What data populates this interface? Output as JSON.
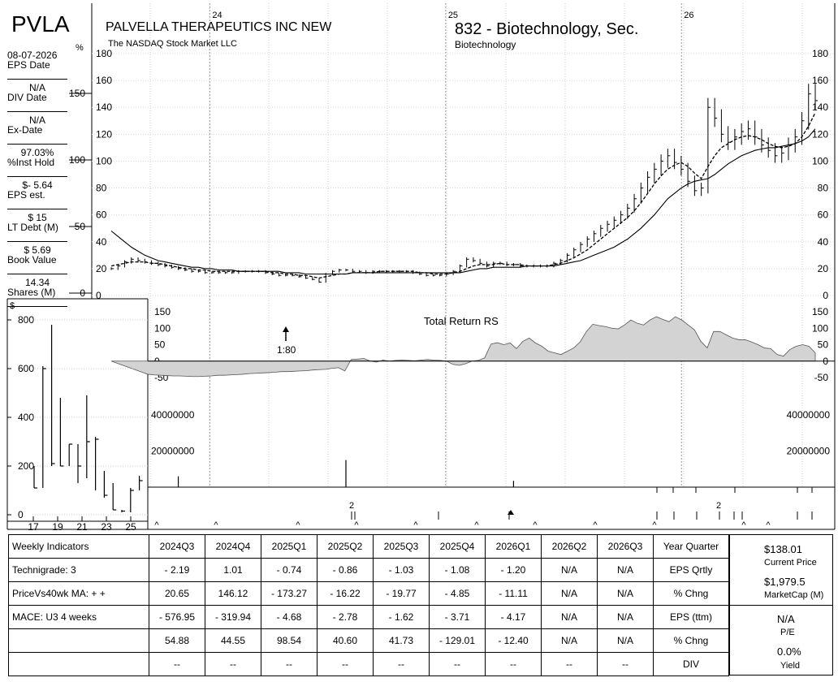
{
  "ticker": "PVLA",
  "company": "PALVELLA THERAPEUTICS INC NEW",
  "exchange": "The NASDAQ Stock Market LLC",
  "industry_group": "832 - Biotechnology, Sec.",
  "industry": "Biotechnology",
  "percent_symbol": "%",
  "dollar_symbol": "$",
  "sidebar": [
    {
      "value": "08-07-2026",
      "label": "EPS Date"
    },
    {
      "value": "N/A",
      "label": "DIV Date"
    },
    {
      "value": "N/A",
      "label": "Ex-Date"
    },
    {
      "value": "97.03%",
      "label": "%Inst Hold"
    },
    {
      "value": "$- 5.64",
      "label": "EPS est."
    },
    {
      "value": "$ 15",
      "label": "LT Debt (M)"
    },
    {
      "value": "$ 5.69",
      "label": "Book Value"
    },
    {
      "value": "14.34",
      "label": "Shares (M)"
    }
  ],
  "chart_data": {
    "type": "line",
    "price": {
      "ylim": [
        0,
        180
      ],
      "ticks": [
        0,
        20,
        40,
        60,
        80,
        100,
        120,
        140,
        160,
        180
      ],
      "pct_ticks": [
        {
          "value": 0,
          "label": "0"
        },
        {
          "value": 50,
          "label": "50"
        },
        {
          "value": 100,
          "label": "100"
        },
        {
          "value": 150,
          "label": "150"
        }
      ],
      "year_labels": [
        "24",
        "25",
        "26"
      ],
      "weekly_close": [
        20,
        22,
        25,
        27,
        26,
        25,
        24,
        23,
        22,
        21,
        20,
        19,
        18,
        18,
        17,
        17,
        17,
        17,
        17,
        18,
        18,
        18,
        18,
        17,
        16,
        15,
        15,
        15,
        14,
        13,
        12,
        10,
        16,
        18,
        19,
        19,
        18,
        18,
        17,
        18,
        18,
        18,
        18,
        18,
        18,
        17,
        16,
        15,
        15,
        15,
        16,
        18,
        22,
        27,
        26,
        24,
        22,
        24,
        24,
        23,
        23,
        22,
        22,
        22,
        22,
        22,
        24,
        26,
        30,
        34,
        38,
        42,
        46,
        50,
        53,
        56,
        60,
        65,
        72,
        80,
        88,
        94,
        100,
        104,
        99,
        94,
        85,
        78,
        80,
        140,
        132,
        120,
        114,
        118,
        122,
        124,
        118,
        112,
        108,
        104,
        106,
        112,
        118,
        130,
        150,
        145
      ],
      "ma_short": [
        22,
        23,
        24,
        25,
        25,
        25,
        24,
        24,
        23,
        22,
        21,
        20,
        20,
        19,
        19,
        18,
        18,
        18,
        18,
        18,
        18,
        18,
        18,
        18,
        17,
        17,
        16,
        16,
        15,
        15,
        14,
        13,
        14,
        15,
        16,
        16,
        17,
        17,
        17,
        17,
        18,
        18,
        18,
        18,
        18,
        18,
        17,
        17,
        16,
        16,
        16,
        17,
        18,
        20,
        22,
        23,
        23,
        23,
        24,
        23,
        23,
        23,
        22,
        22,
        22,
        22,
        23,
        24,
        26,
        28,
        31,
        34,
        38,
        42,
        46,
        50,
        54,
        58,
        63,
        69,
        76,
        83,
        89,
        94,
        97,
        99,
        96,
        91,
        87,
        96,
        104,
        110,
        113,
        116,
        118,
        119,
        118,
        116,
        113,
        111,
        110,
        111,
        113,
        118,
        126,
        136
      ],
      "ma_long": [
        48,
        44,
        40,
        36,
        33,
        30,
        28,
        26,
        25,
        24,
        23,
        22,
        21,
        21,
        20,
        20,
        19,
        19,
        19,
        18,
        18,
        18,
        18,
        18,
        18,
        18,
        17,
        17,
        17,
        16,
        16,
        16,
        16,
        16,
        16,
        16,
        17,
        17,
        17,
        17,
        17,
        17,
        17,
        17,
        17,
        17,
        17,
        17,
        17,
        17,
        17,
        17,
        17,
        18,
        19,
        20,
        20,
        21,
        21,
        21,
        21,
        21,
        22,
        22,
        22,
        22,
        22,
        23,
        24,
        25,
        26,
        28,
        30,
        32,
        34,
        36,
        39,
        42,
        46,
        50,
        55,
        60,
        66,
        72,
        76,
        80,
        83,
        85,
        86,
        87,
        90,
        94,
        98,
        101,
        104,
        106,
        108,
        109,
        110,
        110,
        111,
        112,
        113,
        115,
        118,
        124
      ]
    },
    "rs": {
      "title": "Total Return RS",
      "ylim": [
        -75,
        160
      ],
      "ticks": [
        -50,
        0,
        50,
        100,
        150
      ],
      "split_label": "1:80",
      "values": [
        -40,
        -42,
        -43,
        -44,
        -45,
        -45,
        -46,
        -47,
        -47,
        -46,
        -45,
        -43,
        -43,
        -42,
        -41,
        -40,
        -38,
        -37,
        -36,
        -35,
        -34,
        -32,
        -32,
        -31,
        -30,
        -29,
        -27,
        -26,
        -25,
        -22,
        -20,
        -30,
        5,
        6,
        8,
        0,
        -3,
        3,
        0,
        2,
        3,
        2,
        1,
        3,
        5,
        3,
        2,
        0,
        -10,
        -13,
        -8,
        0,
        2,
        10,
        52,
        56,
        50,
        55,
        38,
        60,
        70,
        55,
        45,
        30,
        25,
        20,
        30,
        40,
        58,
        90,
        112,
        108,
        105,
        100,
        98,
        110,
        125,
        115,
        110,
        125,
        135,
        127,
        120,
        135,
        125,
        110,
        95,
        60,
        40,
        90,
        90,
        80,
        70,
        65,
        65,
        58,
        50,
        40,
        38,
        20,
        15,
        35,
        45,
        50,
        45,
        25
      ]
    },
    "volume": {
      "ticks": [
        {
          "value": 20000000,
          "label": "20000000"
        },
        {
          "value": 40000000,
          "label": "40000000"
        }
      ],
      "ymax": 54000000,
      "spikes": [
        {
          "week": 10,
          "value": 6000000
        },
        {
          "week": 35,
          "value": 15000000
        },
        {
          "week": 60,
          "value": 3500000
        }
      ]
    },
    "long_term": {
      "ylabel": "$",
      "ylim": [
        0,
        830
      ],
      "ticks": [
        0,
        200,
        400,
        600,
        800
      ],
      "x_labels": [
        "17",
        "19",
        "21",
        "23",
        "25"
      ],
      "bars": [
        {
          "high": 200,
          "low": 110,
          "close": 110
        },
        {
          "high": 610,
          "low": 110,
          "close": 600
        },
        {
          "high": 780,
          "low": 200,
          "close": 210
        },
        {
          "high": 480,
          "low": 200,
          "close": 200
        },
        {
          "high": 290,
          "low": 200,
          "close": 290
        },
        {
          "high": 290,
          "low": 130,
          "close": 200
        },
        {
          "high": 490,
          "low": 150,
          "close": 300
        },
        {
          "high": 320,
          "low": 100,
          "close": 310
        },
        {
          "high": 180,
          "low": 70,
          "close": 80
        },
        {
          "high": 130,
          "low": 20,
          "close": 20
        },
        {
          "high": 20,
          "low": 10,
          "close": 15
        },
        {
          "high": 110,
          "low": 10,
          "close": 100
        },
        {
          "high": 160,
          "low": 100,
          "close": 140
        }
      ]
    }
  },
  "event_markers": {
    "split_count_1": "2",
    "split_count_2": "2"
  },
  "table": {
    "header_label": "Weekly Indicators",
    "quarters": [
      "2024Q3",
      "2024Q4",
      "2025Q1",
      "2025Q2",
      "2025Q3",
      "2025Q4",
      "2026Q1",
      "2026Q2",
      "2026Q3"
    ],
    "header_category": "Year Quarter",
    "rows": [
      {
        "label": "Technigrade: 3",
        "values": [
          "- 2.19",
          "1.01",
          "- 0.74",
          "- 0.86",
          "- 1.03",
          "- 1.08",
          "- 1.20",
          "N/A",
          "N/A"
        ],
        "category": "EPS Qrtly"
      },
      {
        "label": "PriceVs40wk MA:  + +",
        "values": [
          "20.65",
          "146.12",
          "- 173.27",
          "- 16.22",
          "- 19.77",
          "- 4.85",
          "- 11.11",
          "N/A",
          "N/A"
        ],
        "category": "% Chng"
      },
      {
        "label": "MACE: U3  4 weeks",
        "values": [
          "- 576.95",
          "- 319.94",
          "- 4.68",
          "- 2.78",
          "- 1.62",
          "- 3.71",
          "- 4.17",
          "N/A",
          "N/A"
        ],
        "category": "EPS (ttm)"
      },
      {
        "label": "",
        "values": [
          "54.88",
          "44.55",
          "98.54",
          "40.60",
          "41.73",
          "- 129.01",
          "- 12.40",
          "N/A",
          "N/A"
        ],
        "category": "% Chng"
      },
      {
        "label": "",
        "values": [
          "--",
          "--",
          "--",
          "--",
          "--",
          "--",
          "--",
          "--",
          "--"
        ],
        "category": "DIV"
      }
    ]
  },
  "summary": {
    "price": "$138.01",
    "price_label": "Current Price",
    "mcap": "$1,979.5",
    "mcap_label": "MarketCap (M)",
    "pe": "N/A",
    "pe_label": "P/E",
    "yield": "0.0%",
    "yield_label": "Yield"
  }
}
